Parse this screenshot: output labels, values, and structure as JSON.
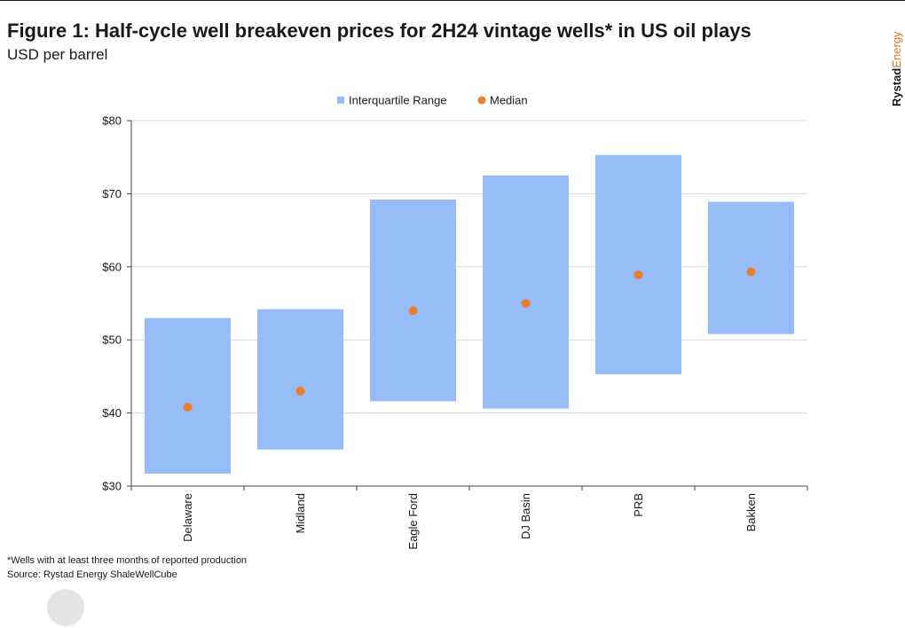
{
  "header": {
    "title": "Figure 1: Half-cycle well breakeven prices for 2H24 vintage wells* in US oil plays",
    "subtitle": "USD per barrel"
  },
  "brand": {
    "part1": "Rystad",
    "part2": "Energy"
  },
  "footer": {
    "footnote": "*Wells with at least three months of reported production",
    "source": "Source: Rystad Energy ShaleWellCube"
  },
  "colors": {
    "range": "#96bdf7",
    "median": "#ed7d31",
    "axis": "#444444",
    "grid": "#d9d9d9",
    "brand_accent": "#e8742c"
  },
  "chart_data": {
    "type": "bar",
    "title": "",
    "xlabel": "",
    "ylabel": "",
    "ylim": [
      30,
      80
    ],
    "yticks": [
      30,
      40,
      50,
      60,
      70,
      80
    ],
    "ytick_labels": [
      "$30",
      "$40",
      "$50",
      "$60",
      "$70",
      "$80"
    ],
    "grid": true,
    "legend_position": "top-center",
    "categories": [
      "Delaware",
      "Midland",
      "Eagle Ford",
      "DJ Basin",
      "PRB",
      "Bakken"
    ],
    "series": [
      {
        "name": "Interquartile Range",
        "kind": "floating-bar",
        "low": [
          31.7,
          35.0,
          41.6,
          40.6,
          45.3,
          50.8
        ],
        "high": [
          53.0,
          54.2,
          69.2,
          72.5,
          75.3,
          68.9
        ]
      },
      {
        "name": "Median",
        "kind": "point",
        "values": [
          40.8,
          43.0,
          54.0,
          55.0,
          58.9,
          59.3
        ]
      }
    ]
  }
}
